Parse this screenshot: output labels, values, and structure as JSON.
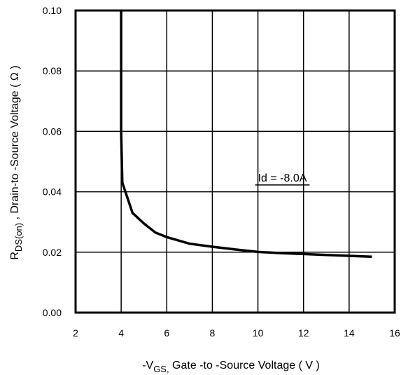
{
  "chart_data": {
    "type": "line",
    "title": "",
    "xlabel": {
      "prefix": "-V",
      "sub": "GS,",
      "rest": " Gate -to -Source Voltage  ( V )"
    },
    "ylabel": {
      "prefix": "R",
      "sub": "DS(on)",
      "rest": "  ,  Drain-to -Source Voltage (   Ω )"
    },
    "xlim": [
      2,
      16
    ],
    "ylim": [
      0,
      0.1
    ],
    "xticks": [
      2,
      4,
      6,
      8,
      10,
      12,
      14,
      16
    ],
    "xtick_labels": [
      "2",
      "4",
      "6",
      "8",
      "10",
      "12",
      "14",
      "16"
    ],
    "yticks": [
      0,
      0.02,
      0.04,
      0.06,
      0.08,
      0.1
    ],
    "ytick_labels": [
      "0.00",
      "0.02",
      "0.04",
      "0.06",
      "0.08",
      "0.10"
    ],
    "grid": true,
    "series": [
      {
        "x": [
          4.0,
          4.0,
          4.05,
          4.5,
          5.0,
          5.5,
          6.0,
          7.0,
          8.0,
          9.0,
          10.0,
          11.0,
          12.0,
          13.0,
          14.0,
          15.0
        ],
        "y": [
          0.1,
          0.06,
          0.043,
          0.033,
          0.0295,
          0.0265,
          0.025,
          0.0228,
          0.0218,
          0.0209,
          0.0201,
          0.0197,
          0.0194,
          0.0191,
          0.0188,
          0.0185
        ]
      }
    ],
    "annotations": [
      {
        "text": "Id = -8.0A",
        "x": 10.0,
        "y": 0.0425
      }
    ]
  }
}
